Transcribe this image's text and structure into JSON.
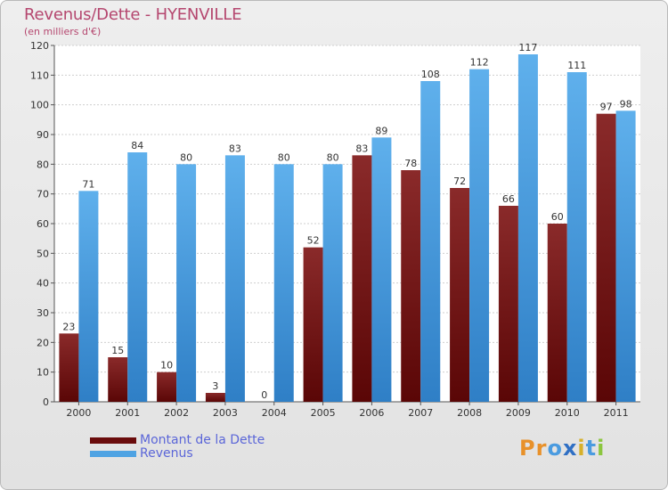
{
  "header": {
    "title": "Revenus/Dette - HYENVILLE",
    "subtitle": "(en milliers d'€)"
  },
  "colors": {
    "dette": "#7a1a1a",
    "revenus": "#4fa3e3",
    "title": "#b5476f",
    "legend_text": "#5b66d8"
  },
  "legend": {
    "items": [
      {
        "label": "Montant de la Dette",
        "color": "#6a0c0c"
      },
      {
        "label": "Revenus",
        "color": "#4fa3e3"
      }
    ]
  },
  "logo": {
    "text": "Proxiti",
    "letter_colors": [
      "#e8912a",
      "#e8912a",
      "#4a9be0",
      "#2f6fc4",
      "#d6b02a",
      "#4a9be0",
      "#8cc63f"
    ]
  },
  "chart_data": {
    "type": "bar",
    "categories": [
      "2000",
      "2001",
      "2002",
      "2003",
      "2004",
      "2005",
      "2006",
      "2007",
      "2008",
      "2009",
      "2010",
      "2011"
    ],
    "series": [
      {
        "name": "Montant de la Dette",
        "values": [
          23,
          15,
          10,
          3,
          0,
          52,
          83,
          78,
          72,
          66,
          60,
          97
        ]
      },
      {
        "name": "Revenus",
        "values": [
          71,
          84,
          80,
          83,
          80,
          80,
          89,
          108,
          112,
          117,
          111,
          98
        ]
      }
    ],
    "ylim": [
      0,
      120
    ],
    "yticks": [
      0,
      10,
      20,
      30,
      40,
      50,
      60,
      70,
      80,
      90,
      100,
      110,
      120
    ],
    "grid": true,
    "legend_position": "bottom-left"
  }
}
